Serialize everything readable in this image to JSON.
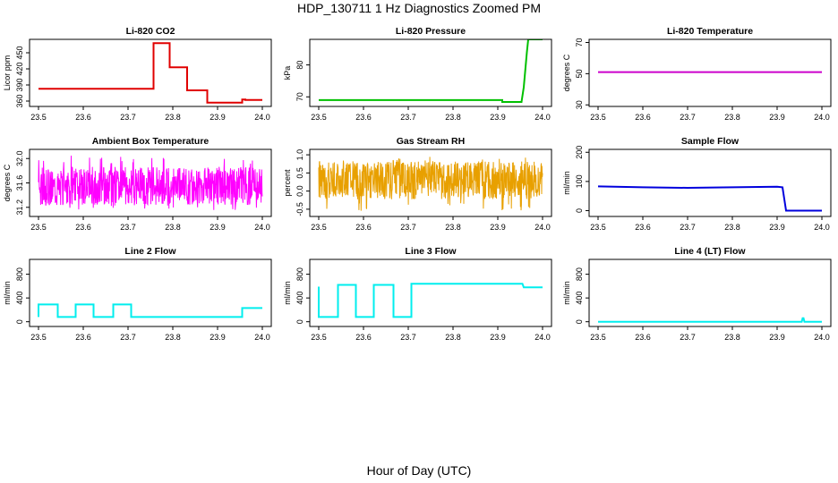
{
  "title": "HDP_130711  1 Hz Diagnostics Zoomed PM",
  "xlabel": "Hour of Day (UTC)",
  "chart_data": [
    {
      "type": "line",
      "title": "Li-820 CO2",
      "ylabel": "Licor ppm",
      "color": "#e00000",
      "xlim": [
        23.5,
        24.0
      ],
      "ylim": [
        350,
        475
      ],
      "xticks": [
        "23.5",
        "23.6",
        "23.7",
        "23.8",
        "23.9",
        "24.0"
      ],
      "yticks": [
        "360",
        "390",
        "420",
        "450"
      ],
      "series": [
        {
          "x": [
            23.5,
            23.757,
            23.757,
            23.793,
            23.793,
            23.832,
            23.832,
            23.877,
            23.877,
            23.955,
            23.955,
            23.962,
            23.962,
            24.0
          ],
          "y": [
            383,
            383,
            468,
            468,
            423,
            423,
            380,
            380,
            357,
            357,
            363,
            363,
            362,
            362
          ]
        }
      ]
    },
    {
      "type": "line",
      "title": "Li-820 Pressure",
      "ylabel": "kPa",
      "color": "#00c000",
      "xlim": [
        23.5,
        24.0
      ],
      "ylim": [
        67,
        88
      ],
      "xticks": [
        "23.5",
        "23.6",
        "23.7",
        "23.8",
        "23.9",
        "24.0"
      ],
      "yticks": [
        "70",
        "80"
      ],
      "series": [
        {
          "x": [
            23.5,
            23.91,
            23.91,
            23.953,
            23.958,
            23.965,
            23.968,
            24.0
          ],
          "y": [
            69.0,
            69.0,
            68.4,
            68.4,
            73,
            84,
            88,
            88
          ]
        }
      ]
    },
    {
      "type": "line",
      "title": "Li-820 Temperature",
      "ylabel": "degrees C",
      "color": "#cc00cc",
      "xlim": [
        23.5,
        24.0
      ],
      "ylim": [
        29,
        72
      ],
      "xticks": [
        "23.5",
        "23.6",
        "23.7",
        "23.8",
        "23.9",
        "24.0"
      ],
      "yticks": [
        "30",
        "50",
        "70"
      ],
      "series": [
        {
          "x": [
            23.5,
            24.0
          ],
          "y": [
            51,
            51
          ]
        }
      ]
    },
    {
      "type": "line",
      "title": "Ambient Box Temperature",
      "ylabel": "degrees C",
      "color": "#ff00ff",
      "xlim": [
        23.5,
        24.0
      ],
      "ylim": [
        31.05,
        32.15
      ],
      "xticks": [
        "23.5",
        "23.6",
        "23.7",
        "23.8",
        "23.9",
        "24.0"
      ],
      "yticks": [
        "31.2",
        "31.6",
        "32.0"
      ],
      "noise": {
        "center": 31.55,
        "low": 31.15,
        "high": 32.05,
        "n": 720
      }
    },
    {
      "type": "line",
      "title": "Gas Stream RH",
      "ylabel": "percent",
      "color": "#e8a000",
      "xlim": [
        23.5,
        24.0
      ],
      "ylim": [
        -0.7,
        1.15
      ],
      "xticks": [
        "23.5",
        "23.6",
        "23.7",
        "23.8",
        "23.9",
        "24.0"
      ],
      "yticks": [
        "-0.5",
        "0.0",
        "0.5",
        "1.0"
      ],
      "noise": {
        "center": 0.3,
        "low": -0.55,
        "high": 0.95,
        "n": 720
      }
    },
    {
      "type": "line",
      "title": "Sample Flow",
      "ylabel": "ml/min",
      "color": "#0000dd",
      "xlim": [
        23.5,
        24.0
      ],
      "ylim": [
        -20,
        210
      ],
      "xticks": [
        "23.5",
        "23.6",
        "23.7",
        "23.8",
        "23.9",
        "24.0"
      ],
      "yticks": [
        "0",
        "100",
        "200"
      ],
      "series": [
        {
          "x": [
            23.5,
            23.6,
            23.7,
            23.8,
            23.9,
            23.912,
            23.92,
            24.0
          ],
          "y": [
            83,
            80,
            78,
            80,
            82,
            80,
            0,
            0
          ]
        }
      ]
    },
    {
      "type": "line",
      "title": "Line 2 Flow",
      "ylabel": "ml/min",
      "color": "#00eeee",
      "xlim": [
        23.5,
        24.0
      ],
      "ylim": [
        -80,
        1050
      ],
      "xticks": [
        "23.5",
        "23.6",
        "23.7",
        "23.8",
        "23.9",
        "24.0"
      ],
      "yticks": [
        "0",
        "400",
        "800"
      ],
      "series": [
        {
          "x": [
            23.5,
            23.5,
            23.543,
            23.543,
            23.583,
            23.583,
            23.623,
            23.623,
            23.667,
            23.667,
            23.707,
            23.707,
            23.955,
            23.955,
            24.0
          ],
          "y": [
            80,
            290,
            290,
            80,
            80,
            290,
            290,
            80,
            80,
            290,
            290,
            80,
            80,
            230,
            230
          ]
        }
      ]
    },
    {
      "type": "line",
      "title": "Line 3 Flow",
      "ylabel": "ml/min",
      "color": "#00eeee",
      "xlim": [
        23.5,
        24.0
      ],
      "ylim": [
        -80,
        1050
      ],
      "xticks": [
        "23.5",
        "23.6",
        "23.7",
        "23.8",
        "23.9",
        "24.0"
      ],
      "yticks": [
        "0",
        "400",
        "800"
      ],
      "series": [
        {
          "x": [
            23.5,
            23.5,
            23.543,
            23.543,
            23.583,
            23.583,
            23.623,
            23.623,
            23.667,
            23.667,
            23.707,
            23.707,
            23.955,
            23.958,
            24.0
          ],
          "y": [
            590,
            80,
            80,
            620,
            620,
            80,
            80,
            620,
            620,
            80,
            80,
            640,
            640,
            580,
            580
          ]
        }
      ]
    },
    {
      "type": "line",
      "title": "Line 4 (LT) Flow",
      "ylabel": "ml/min",
      "color": "#00eeee",
      "xlim": [
        23.5,
        24.0
      ],
      "ylim": [
        -80,
        1050
      ],
      "xticks": [
        "23.5",
        "23.6",
        "23.7",
        "23.8",
        "23.9",
        "24.0"
      ],
      "yticks": [
        "0",
        "400",
        "800"
      ],
      "series": [
        {
          "x": [
            23.5,
            23.955,
            23.957,
            23.959,
            23.961,
            24.0
          ],
          "y": [
            0,
            0,
            60,
            60,
            0,
            0
          ]
        }
      ]
    }
  ]
}
